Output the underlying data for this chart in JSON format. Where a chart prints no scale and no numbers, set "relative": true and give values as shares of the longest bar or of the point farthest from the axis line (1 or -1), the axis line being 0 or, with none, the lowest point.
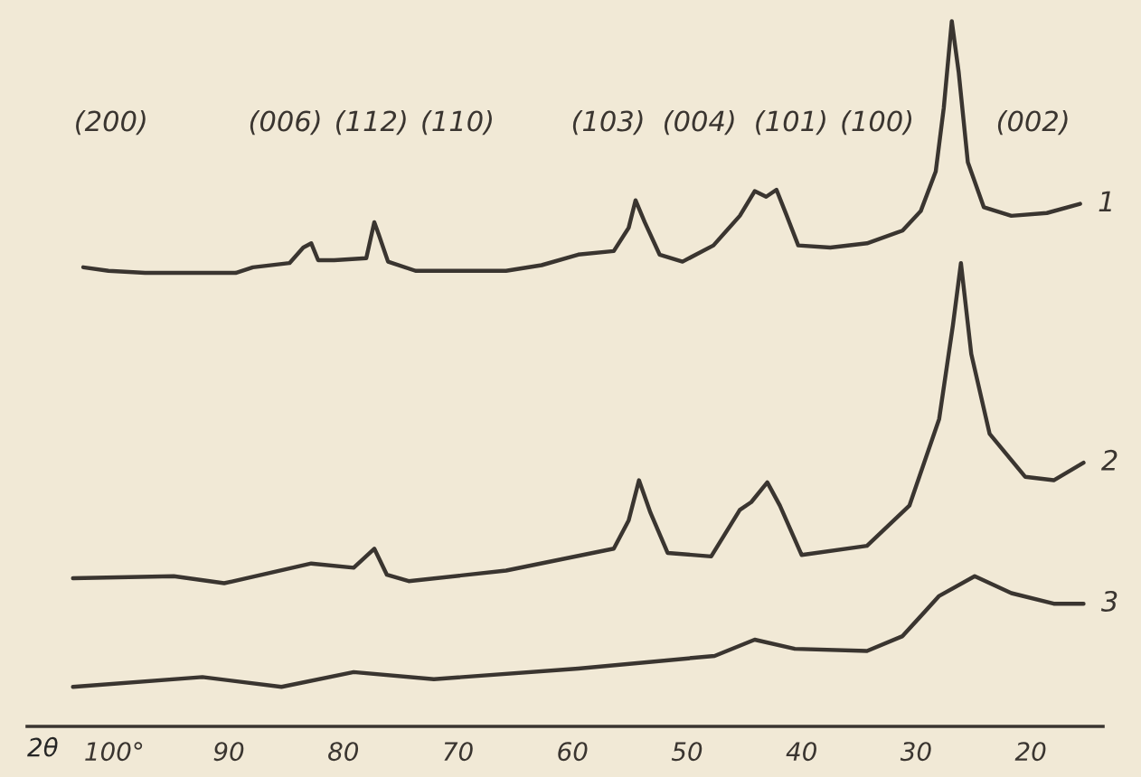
{
  "chart_data": {
    "type": "line",
    "relative": true,
    "xlabel": "2θ",
    "xlim": [
      107.6,
      13.7
    ],
    "xticks": [
      {
        "value": 100,
        "label": "100°"
      },
      90,
      80,
      70,
      60,
      50,
      40,
      30,
      20
    ],
    "grid": false,
    "legend": false,
    "marker": "none",
    "line_style": "solid",
    "tick_labels": "x",
    "series": [
      {
        "name": "1",
        "color": "#3a3530",
        "x": [
          102.7,
          100.5,
          97.3,
          89.4,
          87.9,
          84.7,
          83.5,
          82.8,
          82.2,
          80.8,
          78.0,
          77.3,
          76.9,
          76.1,
          73.7,
          65.8,
          62.7,
          59.5,
          56.4,
          55.1,
          54.5,
          53.7,
          52.4,
          50.4,
          47.7,
          45.4,
          44.1,
          43.1,
          42.2,
          41.3,
          40.3,
          37.5,
          34.3,
          31.2,
          29.6,
          28.3,
          27.6,
          26.9,
          26.3,
          25.5,
          24.1,
          21.7,
          18.6,
          15.7
        ],
        "values": [
          0.651,
          0.646,
          0.643,
          0.643,
          0.651,
          0.657,
          0.679,
          0.685,
          0.661,
          0.661,
          0.664,
          0.715,
          0.697,
          0.659,
          0.646,
          0.646,
          0.654,
          0.669,
          0.674,
          0.707,
          0.746,
          0.715,
          0.669,
          0.659,
          0.682,
          0.724,
          0.759,
          0.751,
          0.761,
          0.724,
          0.682,
          0.679,
          0.685,
          0.703,
          0.731,
          0.787,
          0.877,
          1,
          0.928,
          0.8,
          0.736,
          0.724,
          0.728,
          0.741
        ]
      },
      {
        "name": "2",
        "color": "#3a3530",
        "x": [
          103.6,
          94.8,
          90.4,
          82.8,
          79.1,
          77.3,
          76.2,
          74.3,
          65.8,
          56.4,
          55.1,
          54.2,
          53.2,
          51.7,
          47.9,
          45.4,
          44.4,
          43.0,
          41.9,
          40.0,
          34.3,
          30.6,
          28.0,
          26.8,
          26.1,
          25.2,
          23.6,
          20.5,
          18.0,
          15.4
        ],
        "values": [
          0.21,
          0.213,
          0.203,
          0.231,
          0.225,
          0.252,
          0.215,
          0.206,
          0.221,
          0.252,
          0.292,
          0.349,
          0.303,
          0.246,
          0.241,
          0.307,
          0.318,
          0.346,
          0.313,
          0.243,
          0.256,
          0.313,
          0.436,
          0.569,
          0.657,
          0.528,
          0.415,
          0.354,
          0.349,
          0.374
        ]
      },
      {
        "name": "3",
        "color": "#3a3530",
        "x": [
          103.6,
          92.3,
          85.4,
          79.1,
          72.1,
          59.5,
          47.6,
          44.1,
          40.6,
          34.3,
          31.2,
          28.0,
          24.9,
          21.7,
          18.0,
          15.4
        ],
        "values": [
          0.056,
          0.07,
          0.056,
          0.077,
          0.067,
          0.082,
          0.1,
          0.123,
          0.11,
          0.107,
          0.128,
          0.185,
          0.213,
          0.189,
          0.174,
          0.174
        ]
      }
    ],
    "annotations": [
      "(200)",
      "(006)",
      "(112)",
      "(110)",
      "(103)",
      "(004)",
      "(101)",
      "(100)",
      "(002)"
    ]
  }
}
